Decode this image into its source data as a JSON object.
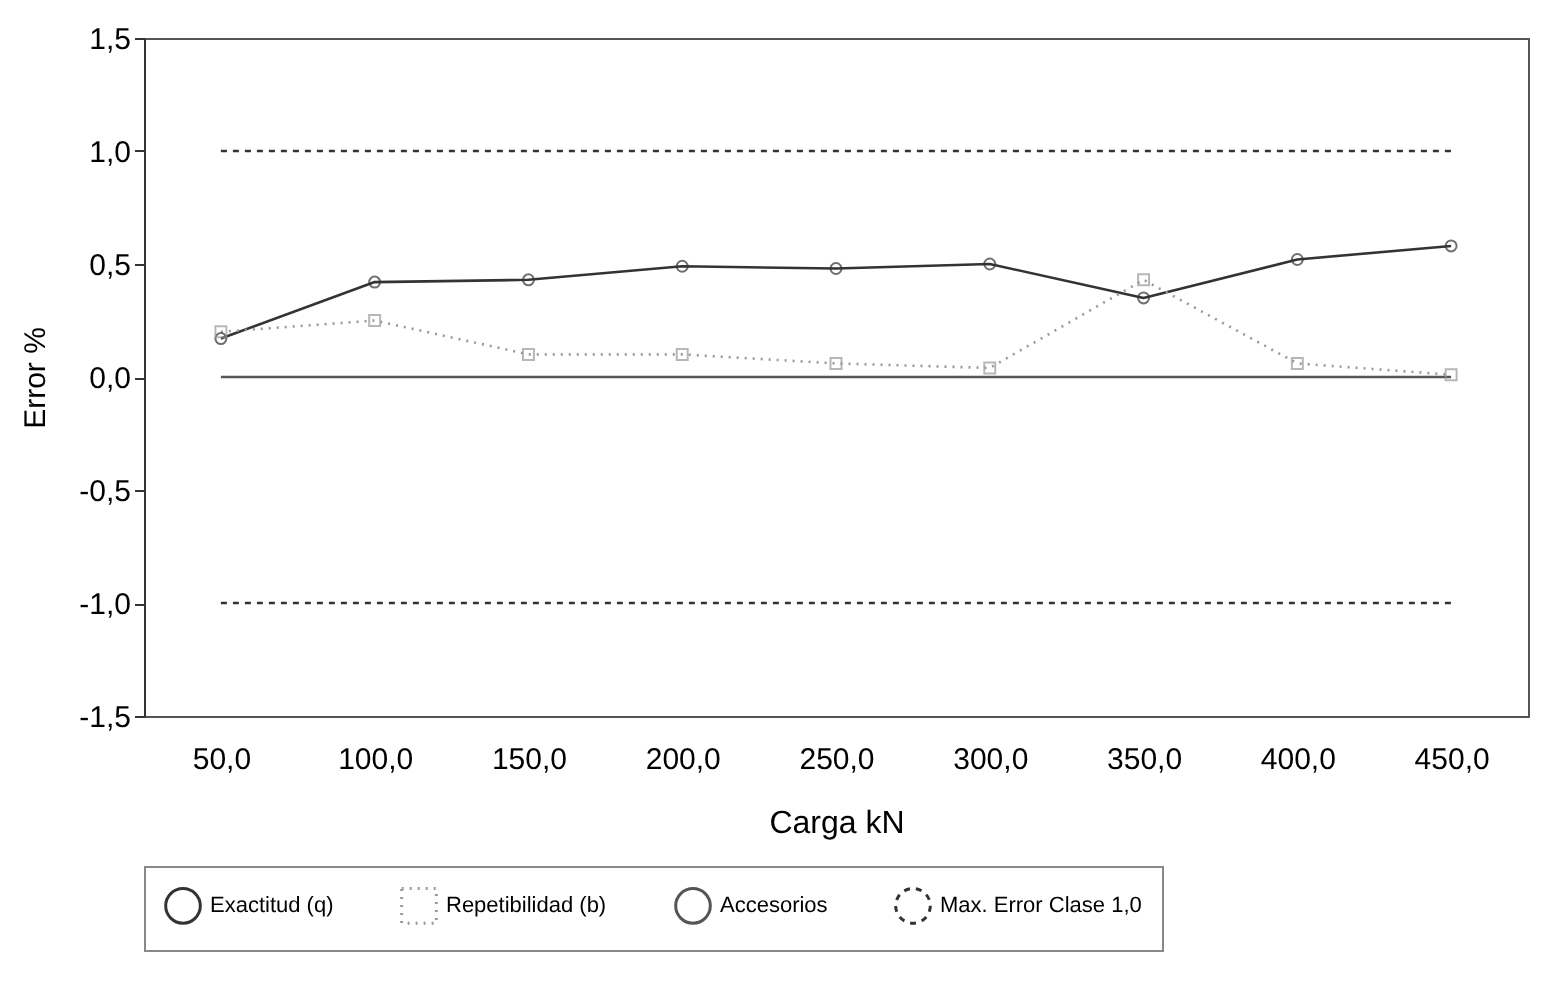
{
  "chart_data": {
    "type": "line",
    "xlabel": "Carga kN",
    "ylabel": "Error %",
    "categories": [
      "50,0",
      "100,0",
      "150,0",
      "200,0",
      "250,0",
      "300,0",
      "350,0",
      "400,0",
      "450,0"
    ],
    "series": [
      {
        "name": "Exactitud (q)",
        "color": "#333333",
        "marker": "circle",
        "line_style": "solid",
        "values": [
          0.17,
          0.42,
          0.43,
          0.49,
          0.48,
          0.5,
          0.35,
          0.52,
          0.58
        ]
      },
      {
        "name": "Repetibilidad (b)",
        "color": "#999999",
        "marker": "square",
        "line_style": "dotted",
        "values": [
          0.2,
          0.25,
          0.1,
          0.1,
          0.06,
          0.04,
          0.43,
          0.06,
          0.01
        ]
      },
      {
        "name": "Accesorios",
        "color": "#555555",
        "marker": "none",
        "line_style": "solid",
        "values": [
          0,
          0,
          0,
          0,
          0,
          0,
          0,
          0,
          0
        ]
      },
      {
        "name": "Max. Error Clase 1,0",
        "color": "#333333",
        "marker": "none",
        "line_style": "dashed",
        "values": [
          1,
          1,
          1,
          1,
          1,
          1,
          1,
          1,
          1
        ]
      },
      {
        "color": "#333333",
        "marker": "none",
        "line_style": "dashed",
        "values": [
          -1,
          -1,
          -1,
          -1,
          -1,
          -1,
          -1,
          -1,
          -1
        ]
      }
    ],
    "ylim": [
      -1.5,
      1.5
    ],
    "yticks": [
      {
        "value": -1.5,
        "label": "-1,5"
      },
      {
        "value": -1,
        "label": "-1,0"
      },
      {
        "value": -0.5,
        "label": "-0,5"
      },
      {
        "value": 0,
        "label": "0,0"
      },
      {
        "value": 0.5,
        "label": "0,5"
      },
      {
        "value": 1,
        "label": "1,0"
      },
      {
        "value": 1.5,
        "label": "1,5"
      }
    ],
    "grid": false,
    "legend": "bottom"
  }
}
